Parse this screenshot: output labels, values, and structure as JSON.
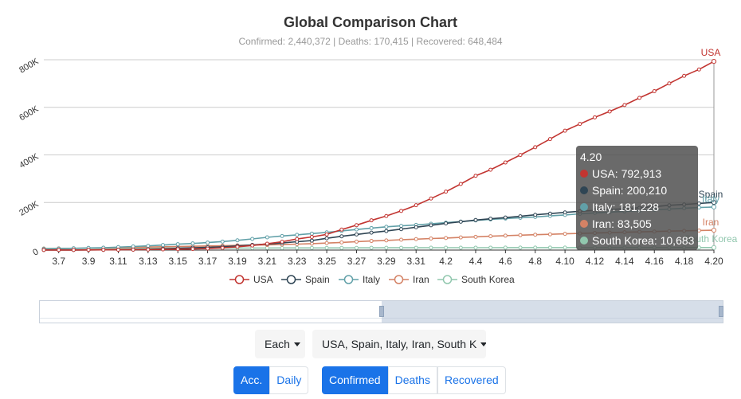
{
  "chart_data": {
    "type": "line",
    "title": "Global Comparison Chart",
    "subtitle": "Confirmed: 2,440,372 | Deaths: 170,415 | Recovered: 648,484",
    "x": [
      "3.6",
      "3.7",
      "3.8",
      "3.9",
      "3.10",
      "3.11",
      "3.12",
      "3.13",
      "3.14",
      "3.15",
      "3.16",
      "3.17",
      "3.18",
      "3.19",
      "3.20",
      "3.21",
      "3.22",
      "3.23",
      "3.24",
      "3.25",
      "3.26",
      "3.27",
      "3.28",
      "3.29",
      "3.30",
      "3.31",
      "4.1",
      "4.2",
      "4.3",
      "4.4",
      "4.5",
      "4.6",
      "4.7",
      "4.8",
      "4.9",
      "4.10",
      "4.11",
      "4.12",
      "4.13",
      "4.14",
      "4.15",
      "4.16",
      "4.17",
      "4.18",
      "4.19",
      "4.20"
    ],
    "x_tick_labels": [
      "3.7",
      "3.9",
      "3.11",
      "3.13",
      "3.15",
      "3.17",
      "3.19",
      "3.21",
      "3.23",
      "3.25",
      "3.27",
      "3.29",
      "3.31",
      "4.2",
      "4.4",
      "4.6",
      "4.8",
      "4.10",
      "4.12",
      "4.14",
      "4.16",
      "4.18",
      "4.20"
    ],
    "ylim": [
      0,
      800000
    ],
    "y_ticks": [
      0,
      200000,
      400000,
      600000,
      800000
    ],
    "y_tick_labels": [
      "0",
      "200K",
      "400K",
      "600K",
      "800K"
    ],
    "grid": true,
    "legend_position": "bottom",
    "series": [
      {
        "name": "USA",
        "color": "#c23531",
        "values": [
          300,
          400,
          500,
          700,
          1000,
          1300,
          1700,
          2300,
          2900,
          3700,
          4700,
          6400,
          9300,
          13900,
          19200,
          26700,
          35200,
          46400,
          55200,
          65800,
          86000,
          104700,
          124900,
          143000,
          164600,
          188600,
          216700,
          245500,
          277900,
          312300,
          337800,
          368400,
          399600,
          432400,
          466500,
          501600,
          530000,
          557600,
          582600,
          609700,
          639700,
          667800,
          700300,
          732200,
          759100,
          792913
        ]
      },
      {
        "name": "Spain",
        "color": "#2f4554",
        "values": [
          300,
          400,
          500,
          700,
          1000,
          1700,
          2300,
          3100,
          5300,
          7800,
          9900,
          11800,
          13900,
          17400,
          21600,
          25500,
          29900,
          35100,
          39900,
          49500,
          57800,
          65700,
          73200,
          80100,
          87900,
          95900,
          104100,
          112100,
          119200,
          126200,
          131600,
          136700,
          141900,
          148200,
          153200,
          158300,
          163000,
          166800,
          170100,
          174100,
          177600,
          182800,
          188100,
          191700,
          195900,
          200210
        ]
      },
      {
        "name": "Italy",
        "color": "#61a0a8",
        "values": [
          4600,
          5900,
          7400,
          9200,
          10100,
          12400,
          15100,
          17700,
          21200,
          24800,
          27900,
          31500,
          35700,
          41000,
          47000,
          53600,
          59100,
          63900,
          69200,
          74400,
          80600,
          86500,
          92500,
          97700,
          101700,
          105800,
          110600,
          115200,
          119800,
          124600,
          128900,
          132500,
          135600,
          139400,
          143600,
          147600,
          152300,
          156400,
          159500,
          162500,
          165200,
          168900,
          172400,
          175900,
          178900,
          181228
        ]
      },
      {
        "name": "Iran",
        "color": "#d48265",
        "values": [
          5800,
          6600,
          7200,
          8000,
          9000,
          10100,
          11400,
          12700,
          13900,
          15100,
          16200,
          17400,
          18400,
          19600,
          20600,
          21600,
          23000,
          24800,
          27000,
          29400,
          32300,
          35400,
          38300,
          40600,
          43400,
          46000,
          48500,
          50500,
          53100,
          55700,
          58200,
          60500,
          62600,
          64600,
          66200,
          68200,
          70000,
          71700,
          73300,
          74900,
          76400,
          77900,
          79500,
          80900,
          82200,
          83505
        ]
      },
      {
        "name": "South Korea",
        "color": "#91c7ae",
        "values": [
          6600,
          7100,
          7300,
          7400,
          7500,
          7800,
          7900,
          8000,
          8100,
          8200,
          8300,
          8300,
          8400,
          8600,
          8700,
          8800,
          8900,
          9000,
          9100,
          9200,
          9200,
          9300,
          9500,
          9600,
          9700,
          9800,
          9900,
          10000,
          10100,
          10200,
          10200,
          10300,
          10300,
          10400,
          10400,
          10400,
          10500,
          10500,
          10500,
          10600,
          10600,
          10600,
          10600,
          10700,
          10700,
          10683
        ]
      }
    ],
    "tooltip": {
      "header": "4.20",
      "rows": [
        {
          "label": "USA: 792,913",
          "color": "#c23531"
        },
        {
          "label": "Spain: 200,210",
          "color": "#2f4554"
        },
        {
          "label": "Italy: 181,228",
          "color": "#61a0a8"
        },
        {
          "label": "Iran: 83,505",
          "color": "#d48265"
        },
        {
          "label": "South Korea: 10,683",
          "color": "#91c7ae"
        }
      ]
    },
    "end_labels": [
      "USA",
      "Spain",
      "Italy",
      "Iran",
      "South Korea"
    ]
  },
  "controls": {
    "mode_dropdown": "Each",
    "country_dropdown": "USA, Spain, Italy, Iran, South K",
    "accumulation": {
      "acc": "Acc.",
      "daily": "Daily",
      "selected": "acc"
    },
    "metric": {
      "confirmed": "Confirmed",
      "deaths": "Deaths",
      "recovered": "Recovered",
      "selected": "confirmed"
    }
  }
}
